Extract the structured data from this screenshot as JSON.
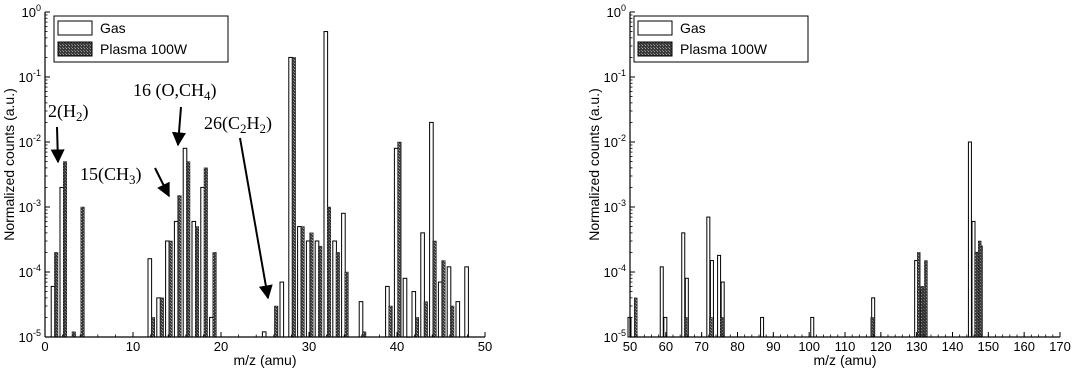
{
  "chart_data": [
    {
      "type": "bar",
      "title": "",
      "xlabel": "m/z (amu)",
      "ylabel": "Normalized counts (a.u.)",
      "xlim": [
        0,
        50
      ],
      "ylim": [
        1e-05,
        1
      ],
      "yscale": "log",
      "xticks": [
        "0",
        "10",
        "20",
        "30",
        "40",
        "50"
      ],
      "yticks": [
        {
          "base": "10",
          "exp": "-5"
        },
        {
          "base": "10",
          "exp": "-4"
        },
        {
          "base": "10",
          "exp": "-3"
        },
        {
          "base": "10",
          "exp": "-2"
        },
        {
          "base": "10",
          "exp": "-1"
        },
        {
          "base": "10",
          "exp": "0"
        }
      ],
      "legend_position": "top-left",
      "series": [
        {
          "name": "Gas",
          "x": [
            1,
            2,
            12,
            13,
            14,
            15,
            16,
            17,
            18,
            19,
            25,
            27,
            28,
            29,
            30,
            31,
            32,
            33,
            34,
            36,
            39,
            40,
            41,
            42,
            43,
            44,
            45,
            46,
            47,
            48
          ],
          "values": [
            6e-05,
            0.002,
            0.00016,
            4e-05,
            0.0003,
            0.0006,
            0.008,
            0.0006,
            0.002,
            2e-05,
            1.2e-05,
            7e-05,
            0.2,
            0.0005,
            0.0003,
            0.0003,
            0.5,
            0.0003,
            0.0008,
            3.5e-05,
            6e-05,
            0.008,
            8e-05,
            5e-05,
            0.0004,
            0.02,
            7e-05,
            0.00012,
            3.5e-05,
            0.00012
          ]
        },
        {
          "name": "Plasma 100W",
          "x": [
            1,
            2,
            3,
            4,
            12,
            13,
            14,
            15,
            16,
            17,
            18,
            19,
            26,
            28,
            29,
            30,
            31,
            32,
            33,
            34,
            36,
            39,
            40,
            41,
            42,
            43,
            44,
            45,
            46
          ],
          "values": [
            0.0002,
            0.005,
            1.2e-05,
            0.001,
            2e-05,
            4e-05,
            0.0003,
            0.0015,
            0.005,
            0.0005,
            0.004,
            0.0002,
            3e-05,
            0.2,
            0.0005,
            0.0004,
            0.00025,
            0.001,
            0.0002,
            0.0001,
            1.2e-05,
            3e-05,
            0.01,
            1e-05,
            2e-05,
            3.5e-05,
            0.0003,
            0.00015,
            3e-05
          ]
        }
      ],
      "annotations": [
        {
          "label": "2",
          "species": "H",
          "sub": "2",
          "close": ")",
          "target_x": 2
        },
        {
          "label": "15",
          "species": "CH",
          "sub": "3",
          "close": ")",
          "target_x": 14.8
        },
        {
          "label": "16",
          "species": "O,CH",
          "sub": "4",
          "close": ")",
          "target_x": 15.7
        },
        {
          "label": "26",
          "species": "C",
          "sub": "2",
          "species2": "H",
          "sub2": "2",
          "close": ")",
          "target_x": 26
        }
      ]
    },
    {
      "type": "bar",
      "title": "",
      "xlabel": "m/z (amu)",
      "ylabel": "Normalized counts (a.u.)",
      "xlim": [
        50,
        170
      ],
      "ylim": [
        1e-05,
        0.01
      ],
      "yscale": "log",
      "xticks": [
        "50",
        "60",
        "70",
        "80",
        "90",
        "100",
        "110",
        "120",
        "130",
        "140",
        "150",
        "160",
        "170"
      ],
      "yticks": [
        {
          "base": "10",
          "exp": "-5"
        },
        {
          "base": "10",
          "exp": "-4"
        },
        {
          "base": "10",
          "exp": "-3"
        },
        {
          "base": "10",
          "exp": "-2"
        },
        {
          "base": "10",
          "exp": "-1"
        },
        {
          "base": "10",
          "exp": "0"
        }
      ],
      "legend_position": "top-left",
      "series": [
        {
          "name": "Gas",
          "x": [
            50,
            59,
            60,
            65,
            66,
            72,
            73,
            75,
            76,
            87,
            101,
            118,
            130,
            131,
            132,
            145,
            146,
            147,
            148
          ],
          "values": [
            2e-05,
            0.00012,
            2e-05,
            0.0004,
            8e-05,
            0.0007,
            0.00015,
            0.00018,
            7e-05,
            2e-05,
            2e-05,
            4e-05,
            0.00015,
            5e-05,
            3e-05,
            0.01,
            0.0006,
            0.0002,
            0.00025
          ]
        },
        {
          "name": "Plasma 100W",
          "x": [
            51,
            65,
            72,
            75,
            117,
            130,
            131,
            132,
            146,
            147
          ],
          "values": [
            4e-05,
            2e-05,
            2e-05,
            2e-05,
            2e-05,
            0.0002,
            6e-05,
            0.00015,
            0.0002,
            0.0003
          ]
        }
      ],
      "annotations": []
    }
  ]
}
